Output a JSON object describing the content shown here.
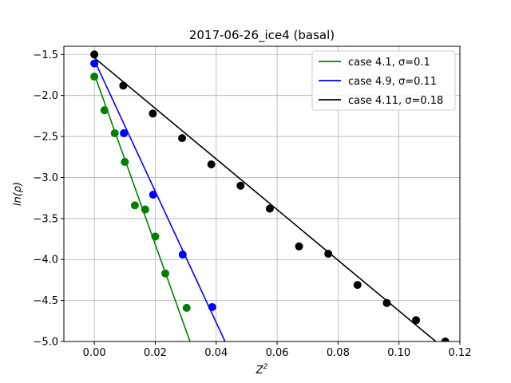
{
  "chart_data": {
    "type": "scatter",
    "title": "2017-06-26_ice4 (basal)",
    "xlabel_base": "Z",
    "xlabel_sup": "2",
    "ylabel": "ln(ρ)",
    "xlim": [
      -0.01,
      0.12
    ],
    "ylim": [
      -5.0,
      -1.4
    ],
    "xticks": [
      0.0,
      0.02,
      0.04,
      0.06,
      0.08,
      0.1,
      0.12
    ],
    "xtick_labels": [
      "0.00",
      "0.02",
      "0.04",
      "0.06",
      "0.08",
      "0.10",
      "0.12"
    ],
    "yticks": [
      -1.5,
      -2.0,
      -2.5,
      -3.0,
      -3.5,
      -4.0,
      -4.5,
      -5.0
    ],
    "ytick_labels": [
      "−1.5",
      "−2.0",
      "−2.5",
      "−3.0",
      "−3.5",
      "−4.0",
      "−4.5",
      "−5.0"
    ],
    "grid": true,
    "legend_position": "top-right",
    "series": [
      {
        "name": "case 4.1, σ=0.1",
        "color": "#008000",
        "points": [
          [
            0.0,
            -1.77
          ],
          [
            0.0033,
            -2.18
          ],
          [
            0.0067,
            -2.46
          ],
          [
            0.01,
            -2.81
          ],
          [
            0.0133,
            -3.34
          ],
          [
            0.0167,
            -3.39
          ],
          [
            0.02,
            -3.72
          ],
          [
            0.0233,
            -4.17
          ],
          [
            0.0303,
            -4.59
          ]
        ],
        "fit": [
          [
            0.0,
            -1.74
          ],
          [
            0.0314,
            -5.0
          ]
        ]
      },
      {
        "name": "case 4.9, σ=0.11",
        "color": "#0000ff",
        "points": [
          [
            0.0,
            -1.61
          ],
          [
            0.0097,
            -2.46
          ],
          [
            0.0193,
            -3.21
          ],
          [
            0.029,
            -3.94
          ],
          [
            0.0387,
            -4.58
          ]
        ],
        "fit": [
          [
            0.0,
            -1.57
          ],
          [
            0.0429,
            -5.0
          ]
        ]
      },
      {
        "name": "case 4.11, σ=0.18",
        "color": "#000000",
        "points": [
          [
            0.0,
            -1.5
          ],
          [
            0.0095,
            -1.88
          ],
          [
            0.0192,
            -2.22
          ],
          [
            0.0288,
            -2.52
          ],
          [
            0.0384,
            -2.84
          ],
          [
            0.048,
            -3.1
          ],
          [
            0.0576,
            -3.38
          ],
          [
            0.0672,
            -3.84
          ],
          [
            0.0768,
            -3.93
          ],
          [
            0.0864,
            -4.31
          ],
          [
            0.096,
            -4.53
          ],
          [
            0.1056,
            -4.74
          ],
          [
            0.1152,
            -5.0
          ]
        ],
        "fit": [
          [
            0.0,
            -1.54
          ],
          [
            0.1121,
            -5.0
          ]
        ]
      }
    ]
  }
}
